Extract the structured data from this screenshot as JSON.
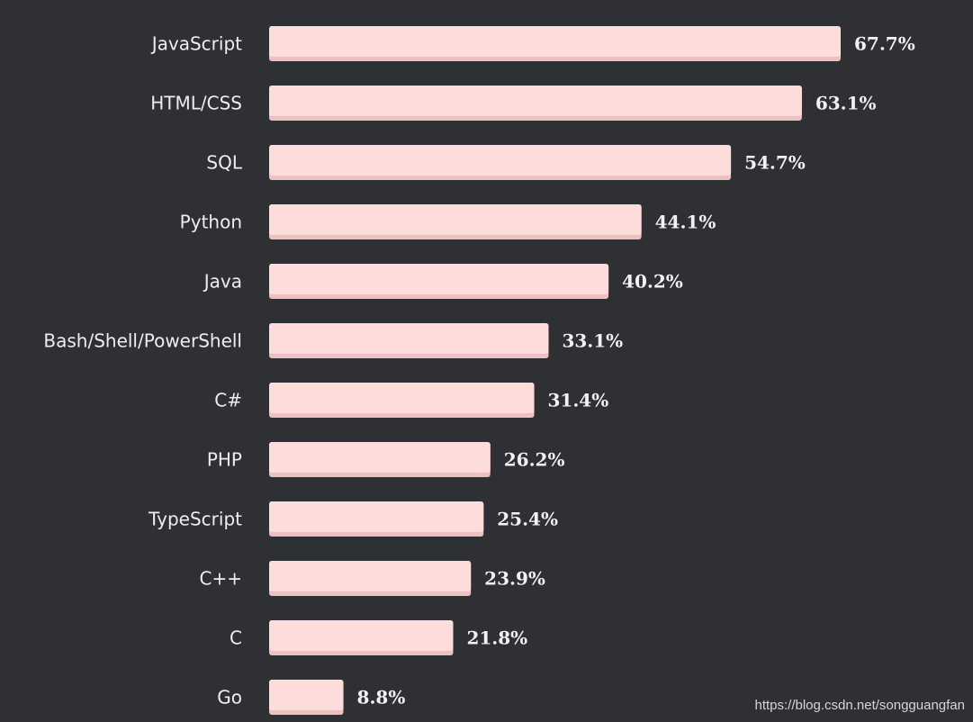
{
  "chart_data": {
    "type": "bar",
    "orientation": "horizontal",
    "categories": [
      "JavaScript",
      "HTML/CSS",
      "SQL",
      "Python",
      "Java",
      "Bash/Shell/PowerShell",
      "C#",
      "PHP",
      "TypeScript",
      "C++",
      "C",
      "Go"
    ],
    "values": [
      67.7,
      63.1,
      54.7,
      44.1,
      40.2,
      33.1,
      31.4,
      26.2,
      25.4,
      23.9,
      21.8,
      8.8
    ],
    "value_labels": [
      "67.7%",
      "63.1%",
      "54.7%",
      "44.1%",
      "40.2%",
      "33.1%",
      "31.4%",
      "26.2%",
      "25.4%",
      "23.9%",
      "21.8%",
      "8.8%"
    ],
    "unit": "%",
    "title": "",
    "xlabel": "",
    "ylabel": "",
    "grid": false,
    "legend": "none",
    "bar_color": "#ffdcdc",
    "background_color": "#2f3034"
  },
  "watermark": "https://blog.csdn.net/songguangfan"
}
